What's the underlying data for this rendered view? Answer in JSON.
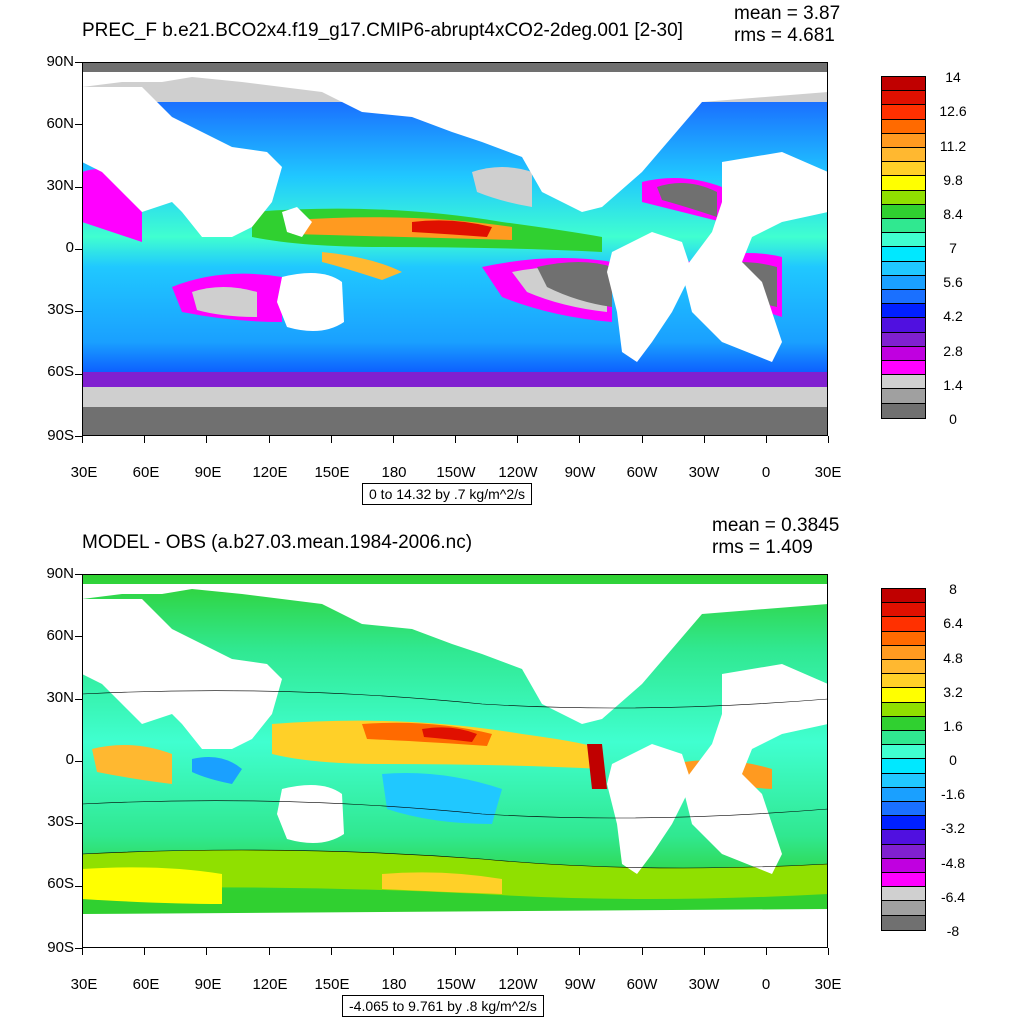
{
  "top": {
    "title": "PREC_F b.e21.BCO2x4.f19_g17.CMIP6-abrupt4xCO2-2deg.001 [2-30]",
    "mean_text": "mean = 3.87",
    "rms_text": "rms = 4.681",
    "range_text": "0 to 14.32 by .7 kg/m^2/s",
    "colorbar": {
      "labels": [
        "14",
        "12.6",
        "11.2",
        "9.8",
        "8.4",
        "7",
        "5.6",
        "4.2",
        "2.8",
        "1.4",
        "0"
      ],
      "colors": [
        "#c00000",
        "#e01000",
        "#ff3000",
        "#ff6a00",
        "#ff9a20",
        "#ffb830",
        "#ffd028",
        "#ffff00",
        "#90e000",
        "#30d030",
        "#30e890",
        "#40ffd0",
        "#00e8ff",
        "#20c8ff",
        "#1aa0ff",
        "#1a70ff",
        "#0020ff",
        "#5010e0",
        "#8020d0",
        "#c000e0",
        "#ff00ff",
        "#d0d0d0",
        "#a0a0a0",
        "#707070"
      ]
    }
  },
  "bottom": {
    "title": "MODEL - OBS (a.b27.03.mean.1984-2006.nc)",
    "mean_text": "mean = 0.3845",
    "rms_text": "rms = 1.409",
    "range_text": "-4.065 to 9.761 by .8 kg/m^2/s",
    "colorbar": {
      "labels": [
        "8",
        "6.4",
        "4.8",
        "3.2",
        "1.6",
        "0",
        "-1.6",
        "-3.2",
        "-4.8",
        "-6.4",
        "-8"
      ],
      "colors": [
        "#c00000",
        "#e01000",
        "#ff3000",
        "#ff6a00",
        "#ff9a20",
        "#ffb830",
        "#ffd028",
        "#ffff00",
        "#90e000",
        "#30d030",
        "#30e890",
        "#40ffd0",
        "#00e8ff",
        "#20c8ff",
        "#1aa0ff",
        "#1a70ff",
        "#0020ff",
        "#5010e0",
        "#8020d0",
        "#c000e0",
        "#ff00ff",
        "#d0d0d0",
        "#a0a0a0",
        "#707070"
      ]
    }
  },
  "axes": {
    "lat_labels": [
      "90N",
      "60N",
      "30N",
      "0",
      "30S",
      "60S",
      "90S"
    ],
    "lon_labels": [
      "30E",
      "60E",
      "90E",
      "120E",
      "150E",
      "180",
      "150W",
      "120W",
      "90W",
      "60W",
      "30W",
      "0",
      "30E"
    ]
  },
  "colors": {
    "land": "#ffffff",
    "sea_ice": "#cfcfcf",
    "dark_ice": "#707070"
  }
}
